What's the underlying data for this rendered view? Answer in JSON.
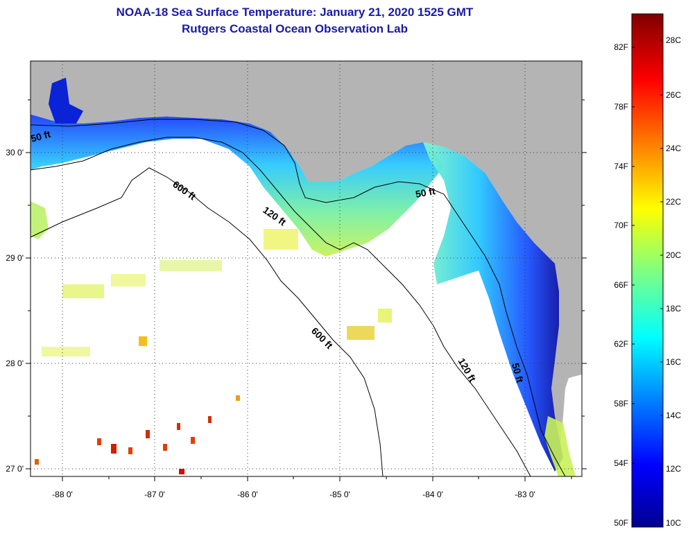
{
  "title": {
    "line1": "NOAA-18 Sea Surface Temperature:  January 21, 2020 1525 GMT",
    "line2": "Rutgers Coastal Ocean Observation Lab"
  },
  "axes": {
    "lon_labels": [
      "-88 0'",
      "-87 0'",
      "-86 0'",
      "-85 0'",
      "-84 0'",
      "-83 0'"
    ],
    "lat_labels": [
      "30 0'",
      "29 0'",
      "28 0'",
      "27 0'"
    ]
  },
  "contours": {
    "labels": [
      "50 ft",
      "120 ft",
      "600 ft",
      "600 ft",
      "120 ft",
      "50 ft"
    ]
  },
  "colorbar": {
    "fahrenheit": [
      "82F",
      "78F",
      "74F",
      "70F",
      "66F",
      "62F",
      "58F",
      "54F",
      "50F"
    ],
    "celsius": [
      "28C",
      "26C",
      "24C",
      "22C",
      "20C",
      "18C",
      "16C",
      "14C",
      "12C",
      "10C"
    ]
  },
  "colors": {
    "land": "#b4b4b4",
    "water_nodata": "#ffffff",
    "title": "#1a1aa6"
  }
}
